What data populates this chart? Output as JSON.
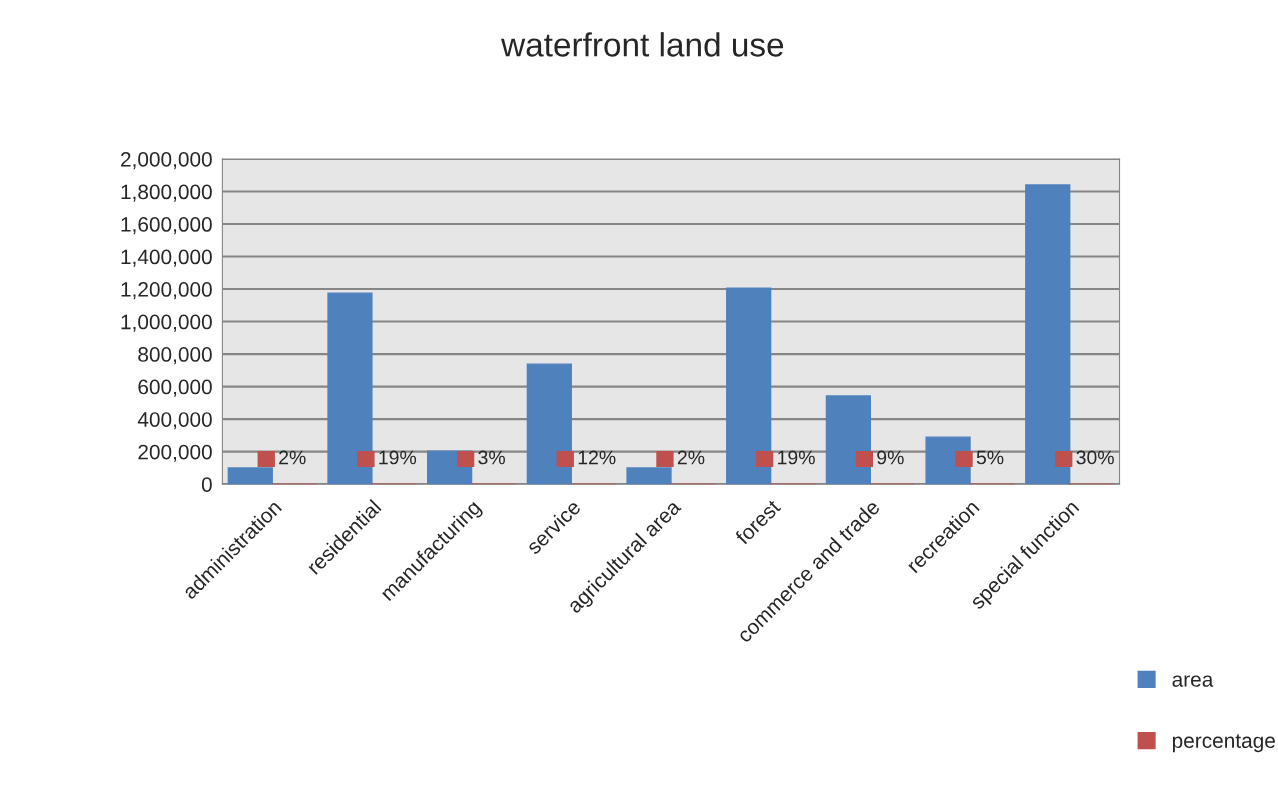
{
  "chart_data": {
    "type": "bar",
    "title": "waterfront land use",
    "categories": [
      "administration",
      "residential",
      "manufacturing",
      "service",
      "agricultural area",
      "forest",
      "commerce and trade",
      "recreation",
      "special function"
    ],
    "series": [
      {
        "name": "area",
        "color": "#4f81bd",
        "values": [
          100000,
          1175000,
          203000,
          738000,
          100000,
          1206000,
          542000,
          289000,
          1840000
        ]
      },
      {
        "name": "percentage",
        "color": "#c0504d",
        "values": [
          0.02,
          0.19,
          0.03,
          0.12,
          0.02,
          0.19,
          0.09,
          0.05,
          0.3
        ],
        "value_labels": [
          "2%",
          "19%",
          "3%",
          "12%",
          "2%",
          "19%",
          "9%",
          "5%",
          "30%"
        ]
      }
    ],
    "ylim": [
      0,
      2000000
    ],
    "yticks": [
      {
        "value": 0,
        "label": "0"
      },
      {
        "value": 200000,
        "label": "200,000"
      },
      {
        "value": 400000,
        "label": "400,000"
      },
      {
        "value": 600000,
        "label": "600,000"
      },
      {
        "value": 800000,
        "label": "800,000"
      },
      {
        "value": 1000000,
        "label": "1,000,000"
      },
      {
        "value": 1200000,
        "label": "1,200,000"
      },
      {
        "value": 1400000,
        "label": "1,400,000"
      },
      {
        "value": 1600000,
        "label": "1,600,000"
      },
      {
        "value": 1800000,
        "label": "1,800,000"
      },
      {
        "value": 2000000,
        "label": "2,000,000"
      }
    ],
    "grid": "y",
    "legend": "right"
  }
}
